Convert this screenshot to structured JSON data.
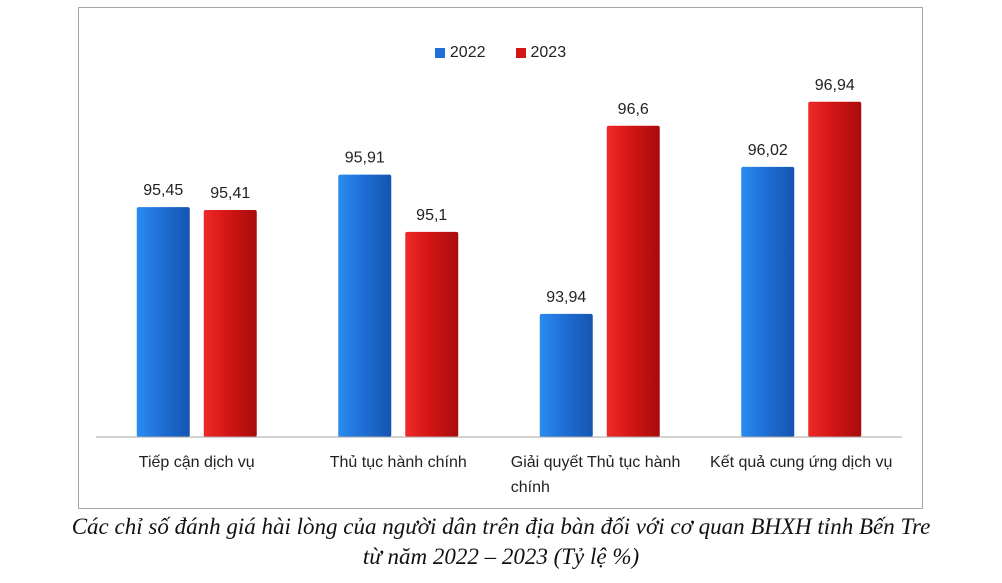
{
  "chart_data": {
    "type": "bar",
    "categories": [
      "Tiếp cận dịch vụ",
      "Thủ tục hành chính",
      "Giải quyết  Thủ tục hành chính",
      "Kết quả cung ứng dịch vụ"
    ],
    "series": [
      {
        "name": "2022",
        "values": [
          95.45,
          95.91,
          93.94,
          96.02
        ],
        "labels": [
          "95,45",
          "95,91",
          "93,94",
          "96,02"
        ],
        "color": "#1f6fd6"
      },
      {
        "name": "2023",
        "values": [
          95.41,
          95.1,
          96.6,
          96.94
        ],
        "labels": [
          "95,41",
          "95,1",
          "96,6",
          "96,94"
        ],
        "color": "#d41515"
      }
    ],
    "legend_position": "top-center",
    "grid": false,
    "axis_baseline": 92.2,
    "axis_top": 97.7
  },
  "legend": {
    "s2022": "2022",
    "s2023": "2023"
  },
  "caption": {
    "line1": "Các chỉ số đánh giá hài lòng của người dân trên địa bàn đối với cơ quan BHXH tỉnh Bến Tre",
    "line2": "từ năm 2022 – 2023 (Tỷ lệ %)"
  }
}
